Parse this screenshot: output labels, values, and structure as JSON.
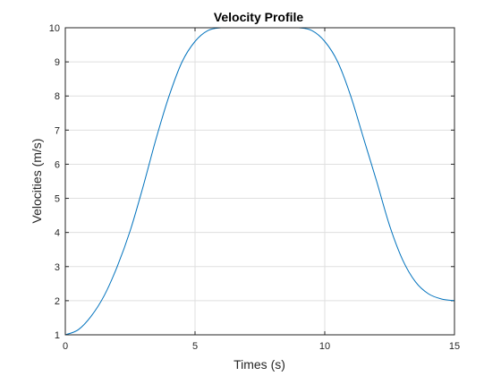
{
  "chart_data": {
    "type": "line",
    "title": "Velocity Profile",
    "xlabel": "Times (s)",
    "ylabel": "Velocities (m/s)",
    "xlim": [
      0,
      15
    ],
    "ylim": [
      1,
      10
    ],
    "xticks": [
      0,
      5,
      10,
      15
    ],
    "yticks": [
      1,
      2,
      3,
      4,
      5,
      6,
      7,
      8,
      9,
      10
    ],
    "grid": true,
    "series": [
      {
        "color": "#0072bd",
        "x": [
          0,
          0.5,
          1,
          1.5,
          2,
          2.5,
          3,
          3.5,
          4,
          4.5,
          5,
          5.5,
          6,
          6.5,
          7,
          7.5,
          8,
          8.5,
          9,
          9.5,
          10,
          10.5,
          11,
          11.5,
          12,
          12.5,
          13,
          13.5,
          14,
          14.5,
          15
        ],
        "y": [
          1.0,
          1.15,
          1.55,
          2.15,
          3.0,
          4.05,
          5.35,
          6.75,
          8.0,
          9.0,
          9.6,
          9.92,
          10.0,
          10.0,
          10.0,
          10.0,
          10.0,
          10.0,
          10.0,
          9.92,
          9.6,
          9.0,
          8.0,
          6.75,
          5.5,
          4.2,
          3.2,
          2.55,
          2.2,
          2.05,
          2.0
        ]
      }
    ]
  }
}
